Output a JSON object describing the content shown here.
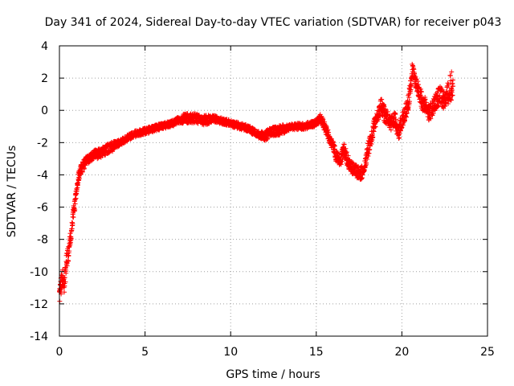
{
  "chart_data": {
    "type": "scatter",
    "title": "Day 341 of 2024, Sidereal Day-to-day VTEC variation (SDTVAR) for receiver p043",
    "xlabel": "GPS time / hours",
    "ylabel": "SDTVAR / TECUs",
    "xlim": [
      0,
      25
    ],
    "ylim": [
      -14,
      4
    ],
    "xticks": [
      0,
      5,
      10,
      15,
      20,
      25
    ],
    "yticks": [
      -14,
      -12,
      -10,
      -8,
      -6,
      -4,
      -2,
      0,
      2,
      4
    ],
    "grid": true,
    "marker": "+",
    "color": "#ff0000",
    "series": [
      {
        "name": "SDTVAR",
        "x": [
          0.0,
          0.1,
          0.2,
          0.3,
          0.4,
          0.5,
          0.6,
          0.7,
          0.8,
          0.9,
          1.0,
          1.1,
          1.2,
          1.3,
          1.5,
          1.7,
          2.0,
          2.2,
          2.5,
          2.8,
          3.0,
          3.2,
          3.5,
          3.7,
          4.0,
          4.3,
          4.6,
          5.0,
          5.3,
          5.6,
          6.0,
          6.3,
          6.6,
          7.0,
          7.3,
          7.6,
          8.0,
          8.3,
          8.6,
          9.0,
          9.3,
          9.6,
          10.0,
          10.3,
          10.6,
          11.0,
          11.3,
          11.6,
          12.0,
          12.3,
          12.6,
          13.0,
          13.3,
          13.6,
          14.0,
          14.3,
          14.6,
          15.0,
          15.2,
          15.4,
          15.6,
          15.8,
          16.0,
          16.2,
          16.4,
          16.6,
          16.8,
          17.0,
          17.2,
          17.4,
          17.6,
          17.8,
          18.0,
          18.2,
          18.4,
          18.6,
          18.8,
          19.0,
          19.2,
          19.4,
          19.6,
          19.8,
          20.0,
          20.2,
          20.4,
          20.6,
          20.8,
          21.0,
          21.2,
          21.4,
          21.6,
          21.8,
          22.0,
          22.2,
          22.4,
          22.6,
          22.8,
          23.0
        ],
        "y": [
          -11.5,
          -10.8,
          -10.2,
          -10.8,
          -9.5,
          -9.0,
          -8.2,
          -7.5,
          -6.5,
          -5.8,
          -5.0,
          -4.2,
          -3.8,
          -3.6,
          -3.2,
          -3.0,
          -2.8,
          -2.7,
          -2.6,
          -2.4,
          -2.3,
          -2.2,
          -2.0,
          -1.9,
          -1.7,
          -1.5,
          -1.4,
          -1.3,
          -1.2,
          -1.1,
          -1.0,
          -0.9,
          -0.8,
          -0.6,
          -0.5,
          -0.5,
          -0.5,
          -0.6,
          -0.6,
          -0.5,
          -0.6,
          -0.7,
          -0.8,
          -0.9,
          -1.0,
          -1.1,
          -1.3,
          -1.5,
          -1.6,
          -1.4,
          -1.3,
          -1.2,
          -1.1,
          -1.0,
          -1.0,
          -1.0,
          -0.9,
          -0.8,
          -0.5,
          -0.8,
          -1.3,
          -1.8,
          -2.3,
          -2.9,
          -3.2,
          -2.4,
          -3.0,
          -3.5,
          -3.7,
          -3.8,
          -3.9,
          -3.7,
          -2.5,
          -1.8,
          -0.8,
          -0.3,
          0.3,
          -0.3,
          -0.5,
          -0.8,
          -0.6,
          -1.5,
          -0.6,
          -0.1,
          0.5,
          2.5,
          1.8,
          1.2,
          0.5,
          0.3,
          -0.2,
          0.2,
          0.6,
          0.9,
          0.7,
          0.8,
          1.2,
          2.0
        ],
        "spread": [
          0.5,
          0.6,
          0.6,
          0.7,
          0.6,
          0.5,
          0.4,
          0.4,
          0.4,
          0.4,
          0.3,
          0.3,
          0.3,
          0.3,
          0.3,
          0.3,
          0.3,
          0.3,
          0.3,
          0.3,
          0.3,
          0.3,
          0.2,
          0.2,
          0.2,
          0.2,
          0.2,
          0.2,
          0.2,
          0.2,
          0.2,
          0.2,
          0.2,
          0.2,
          0.3,
          0.3,
          0.3,
          0.3,
          0.3,
          0.2,
          0.2,
          0.2,
          0.2,
          0.2,
          0.2,
          0.2,
          0.2,
          0.2,
          0.3,
          0.3,
          0.3,
          0.3,
          0.2,
          0.2,
          0.2,
          0.2,
          0.2,
          0.2,
          0.3,
          0.3,
          0.3,
          0.3,
          0.4,
          0.4,
          0.4,
          0.4,
          0.4,
          0.4,
          0.4,
          0.4,
          0.4,
          0.4,
          0.5,
          0.4,
          0.4,
          0.4,
          0.5,
          0.5,
          0.4,
          0.5,
          0.5,
          0.5,
          0.5,
          0.5,
          0.6,
          0.4,
          0.4,
          0.5,
          0.5,
          0.5,
          0.5,
          0.5,
          0.5,
          0.6,
          0.6,
          0.7,
          0.9,
          1.0
        ]
      }
    ]
  }
}
